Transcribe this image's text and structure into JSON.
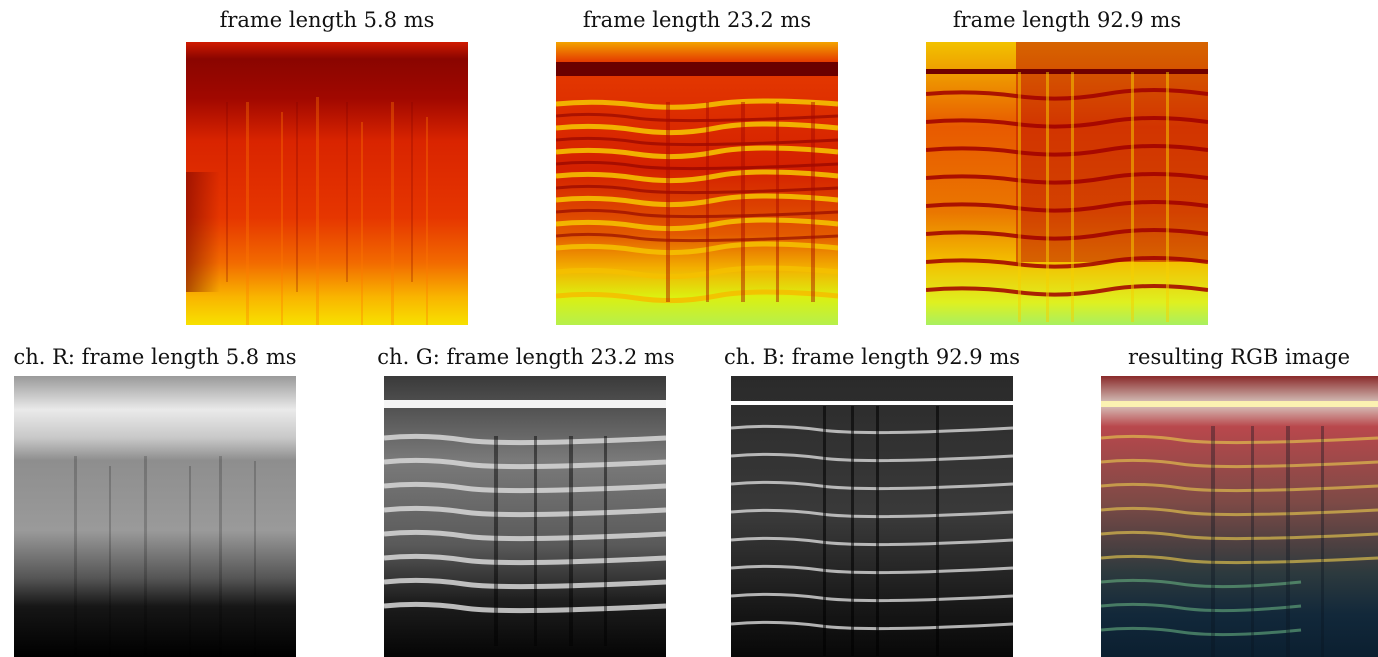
{
  "figure": {
    "top_row": [
      {
        "id": "spec-5-8",
        "title": "frame length 5.8 ms",
        "colormap": "hot"
      },
      {
        "id": "spec-23-2",
        "title": "frame length 23.2 ms",
        "colormap": "hot"
      },
      {
        "id": "spec-92-9",
        "title": "frame length 92.9 ms",
        "colormap": "hot"
      }
    ],
    "bottom_row": [
      {
        "id": "ch-r",
        "title": "ch. R: frame length 5.8 ms",
        "colormap": "gray"
      },
      {
        "id": "ch-g",
        "title": "ch. G: frame length 23.2 ms",
        "colormap": "gray"
      },
      {
        "id": "ch-b",
        "title": "ch. B: frame length 92.9 ms",
        "colormap": "gray"
      },
      {
        "id": "rgb",
        "title": "resulting RGB image",
        "colormap": "rgb"
      }
    ]
  }
}
